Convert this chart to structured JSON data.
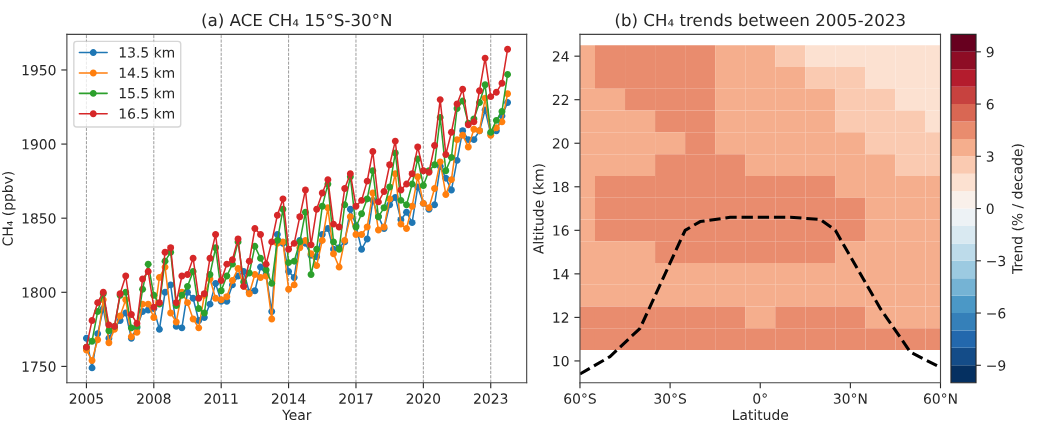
{
  "chart_data": [
    {
      "type": "line",
      "title": "(a) ACE CH₄ 15°S-30°N",
      "xlabel": "Year",
      "ylabel": "CH₄ (ppbv)",
      "x": [
        2005.0,
        2005.25,
        2005.5,
        2005.75,
        2006.0,
        2006.25,
        2006.5,
        2006.75,
        2007.0,
        2007.25,
        2007.5,
        2007.75,
        2008.0,
        2008.25,
        2008.5,
        2008.75,
        2009.0,
        2009.25,
        2009.5,
        2009.75,
        2010.0,
        2010.25,
        2010.5,
        2010.75,
        2011.0,
        2011.25,
        2011.5,
        2011.75,
        2012.0,
        2012.25,
        2012.5,
        2012.75,
        2013.0,
        2013.25,
        2013.5,
        2013.75,
        2014.0,
        2014.25,
        2014.5,
        2014.75,
        2015.0,
        2015.25,
        2015.5,
        2015.75,
        2016.0,
        2016.25,
        2016.5,
        2016.75,
        2017.0,
        2017.25,
        2017.5,
        2017.75,
        2018.0,
        2018.25,
        2018.5,
        2018.75,
        2019.0,
        2019.25,
        2019.5,
        2019.75,
        2020.0,
        2020.25,
        2020.5,
        2020.75,
        2021.0,
        2021.25,
        2021.5,
        2021.75,
        2022.0,
        2022.25,
        2022.5,
        2022.75,
        2023.0,
        2023.25,
        2023.5,
        2023.75
      ],
      "series": [
        {
          "name": "13.5 km",
          "color": "#1f77b4",
          "values": [
            1769,
            1749,
            1772,
            1789,
            1769,
            1776,
            1781,
            1786,
            1769,
            1776,
            1787,
            1788,
            1789,
            1775,
            1800,
            1805,
            1777,
            1776,
            1800,
            1796,
            1781,
            1783,
            1792,
            1806,
            1794,
            1794,
            1805,
            1811,
            1814,
            1800,
            1801,
            1817,
            1812,
            1787,
            1839,
            1833,
            1814,
            1810,
            1835,
            1833,
            1825,
            1824,
            1839,
            1843,
            1829,
            1830,
            1834,
            1856,
            1845,
            1829,
            1836,
            1862,
            1851,
            1843,
            1859,
            1864,
            1849,
            1854,
            1847,
            1871,
            1860,
            1856,
            1859,
            1885,
            1877,
            1869,
            1889,
            1909,
            1903,
            1903,
            1909,
            1923,
            1907,
            1909,
            1919,
            1928
          ]
        },
        {
          "name": "14.5 km",
          "color": "#ff7f0e",
          "values": [
            1761,
            1754,
            1768,
            1795,
            1766,
            1775,
            1784,
            1795,
            1770,
            1773,
            1792,
            1792,
            1783,
            1810,
            1817,
            1786,
            1780,
            1800,
            1793,
            1782,
            1776,
            1798,
            1809,
            1796,
            1795,
            1797,
            1808,
            1816,
            1804,
            1799,
            1812,
            1810,
            1811,
            1782,
            1833,
            1834,
            1802,
            1805,
            1830,
            1835,
            1826,
            1818,
            1835,
            1857,
            1826,
            1817,
            1835,
            1851,
            1839,
            1839,
            1844,
            1867,
            1842,
            1844,
            1863,
            1880,
            1846,
            1843,
            1858,
            1878,
            1860,
            1857,
            1870,
            1888,
            1866,
            1876,
            1903,
            1906,
            1898,
            1910,
            1909,
            1931,
            1906,
            1911,
            1915,
            1934
          ]
        },
        {
          "name": "15.5 km",
          "color": "#2ca02c",
          "values": [
            1763,
            1767,
            1787,
            1799,
            1774,
            1777,
            1798,
            1800,
            1776,
            1777,
            1802,
            1819,
            1798,
            1792,
            1821,
            1827,
            1791,
            1798,
            1804,
            1814,
            1789,
            1786,
            1812,
            1830,
            1801,
            1811,
            1819,
            1834,
            1807,
            1813,
            1831,
            1823,
            1815,
            1806,
            1835,
            1856,
            1820,
            1821,
            1834,
            1854,
            1812,
            1829,
            1858,
            1873,
            1834,
            1829,
            1859,
            1878,
            1844,
            1853,
            1863,
            1882,
            1851,
            1857,
            1871,
            1894,
            1862,
            1859,
            1873,
            1890,
            1872,
            1882,
            1886,
            1918,
            1882,
            1891,
            1924,
            1929,
            1914,
            1917,
            1928,
            1940,
            1908,
            1916,
            1922,
            1947
          ]
        },
        {
          "name": "16.5 km",
          "color": "#d62728",
          "values": [
            1763,
            1781,
            1793,
            1800,
            1778,
            1777,
            1799,
            1811,
            1785,
            1779,
            1809,
            1814,
            1790,
            1793,
            1827,
            1830,
            1793,
            1811,
            1812,
            1823,
            1796,
            1799,
            1823,
            1839,
            1808,
            1819,
            1822,
            1836,
            1804,
            1821,
            1843,
            1839,
            1819,
            1834,
            1852,
            1863,
            1829,
            1833,
            1851,
            1869,
            1832,
            1856,
            1867,
            1876,
            1846,
            1844,
            1870,
            1880,
            1858,
            1862,
            1875,
            1895,
            1861,
            1868,
            1886,
            1902,
            1869,
            1873,
            1880,
            1898,
            1882,
            1881,
            1899,
            1930,
            1893,
            1908,
            1927,
            1937,
            1913,
            1915,
            1936,
            1958,
            1932,
            1935,
            1941,
            1964
          ]
        }
      ],
      "xlim": [
        2004.13,
        2024.6
      ],
      "ylim": [
        1739,
        1974
      ],
      "xticks": [
        2005,
        2008,
        2011,
        2014,
        2017,
        2020,
        2023
      ],
      "yticks": [
        1750,
        1800,
        1850,
        1900,
        1950
      ],
      "grid": "x",
      "legend": "top left",
      "marker": "circle",
      "line_style": "solid"
    },
    {
      "type": "heatmap",
      "title": "(b) CH₄ trends between 2005-2023",
      "xlabel": "Latitude",
      "ylabel": "Altitude (km)",
      "clabel": "Trend (% / decade)",
      "x": [
        -60,
        -50,
        -40,
        -30,
        -20,
        -10,
        0,
        10,
        20,
        30,
        40,
        50,
        60
      ],
      "y": [
        24,
        23,
        22,
        21,
        20,
        19,
        18,
        17,
        16,
        15,
        14,
        13,
        12,
        11
      ],
      "cells": [
        [
          3.5,
          4.5,
          4.5,
          4.5,
          4.5,
          3.5,
          3.5,
          2.5,
          1.5,
          1.5,
          1.5,
          1.5,
          1.5
        ],
        [
          3.5,
          4.5,
          4.5,
          4.5,
          4.5,
          3.5,
          3.5,
          3.5,
          2.5,
          2.5,
          1.5,
          1.5,
          1.5
        ],
        [
          3.5,
          3.5,
          4.5,
          4.5,
          4.5,
          3.5,
          3.5,
          3.5,
          3.5,
          2.5,
          2.5,
          1.5,
          1.5
        ],
        [
          3.5,
          3.5,
          3.5,
          4.5,
          4.5,
          3.5,
          3.5,
          3.5,
          3.5,
          2.5,
          2.5,
          2.5,
          1.5
        ],
        [
          3.5,
          3.5,
          3.5,
          3.5,
          4.5,
          3.5,
          3.5,
          3.5,
          3.5,
          3.5,
          2.5,
          2.5,
          2.5
        ],
        [
          3.5,
          3.5,
          3.5,
          4.5,
          4.5,
          4.5,
          3.5,
          3.5,
          3.5,
          3.5,
          3.5,
          2.5,
          2.5
        ],
        [
          3.5,
          4.5,
          4.5,
          4.5,
          4.5,
          4.5,
          4.5,
          4.5,
          4.5,
          3.5,
          3.5,
          3.5,
          3.5
        ],
        [
          3.5,
          4.5,
          4.5,
          4.5,
          4.5,
          4.5,
          4.5,
          4.5,
          4.5,
          4.5,
          3.5,
          3.5,
          3.5
        ],
        [
          3.5,
          4.5,
          4.5,
          4.5,
          4.5,
          4.5,
          4.5,
          4.5,
          4.5,
          4.5,
          3.5,
          3.5,
          3.5
        ],
        [
          3.5,
          3.5,
          3.5,
          4.5,
          4.5,
          4.5,
          4.5,
          4.5,
          4.5,
          3.5,
          3.5,
          3.5,
          3.5
        ],
        [
          3.5,
          3.5,
          3.5,
          3.5,
          3.5,
          3.5,
          3.5,
          3.5,
          3.5,
          3.5,
          3.5,
          3.5,
          3.5
        ],
        [
          3.5,
          3.5,
          3.5,
          3.5,
          3.5,
          3.5,
          3.5,
          3.5,
          3.5,
          3.5,
          3.5,
          3.5,
          3.5
        ],
        [
          4.5,
          4.5,
          4.5,
          4.5,
          4.5,
          4.5,
          3.5,
          4.5,
          4.5,
          4.5,
          3.5,
          3.5,
          3.5
        ],
        [
          4.5,
          4.5,
          4.5,
          4.5,
          4.5,
          4.5,
          4.5,
          4.5,
          4.5,
          4.5,
          4.5,
          4.5,
          4.5
        ]
      ],
      "clim": [
        -10,
        10
      ],
      "cticks": [
        {
          "value": -9,
          "label": "−9"
        },
        {
          "value": -6,
          "label": "−6"
        },
        {
          "value": -3,
          "label": "−3"
        },
        0,
        3,
        6,
        9
      ],
      "series": [
        {
          "type": "line",
          "color": "#000000",
          "line_style": "dashed",
          "x": [
            -60,
            -50,
            -40,
            -30,
            -25,
            -20,
            -10,
            0,
            10,
            20,
            25,
            30,
            40,
            50,
            60
          ],
          "values": [
            9.4,
            10.2,
            11.5,
            14.5,
            16.0,
            16.4,
            16.6,
            16.6,
            16.6,
            16.5,
            16.0,
            14.8,
            12.4,
            10.4,
            9.7
          ]
        }
      ],
      "xlim": [
        -60,
        60
      ],
      "ylim": [
        9,
        25
      ],
      "xticks": [
        {
          "value": -60,
          "label": "60°S"
        },
        {
          "value": -30,
          "label": "30°S"
        },
        {
          "value": 0,
          "label": "0°"
        },
        {
          "value": 30,
          "label": "30°N"
        },
        {
          "value": 60,
          "label": "60°N"
        }
      ],
      "yticks": [
        10,
        12,
        14,
        16,
        18,
        20,
        22,
        24
      ]
    }
  ]
}
